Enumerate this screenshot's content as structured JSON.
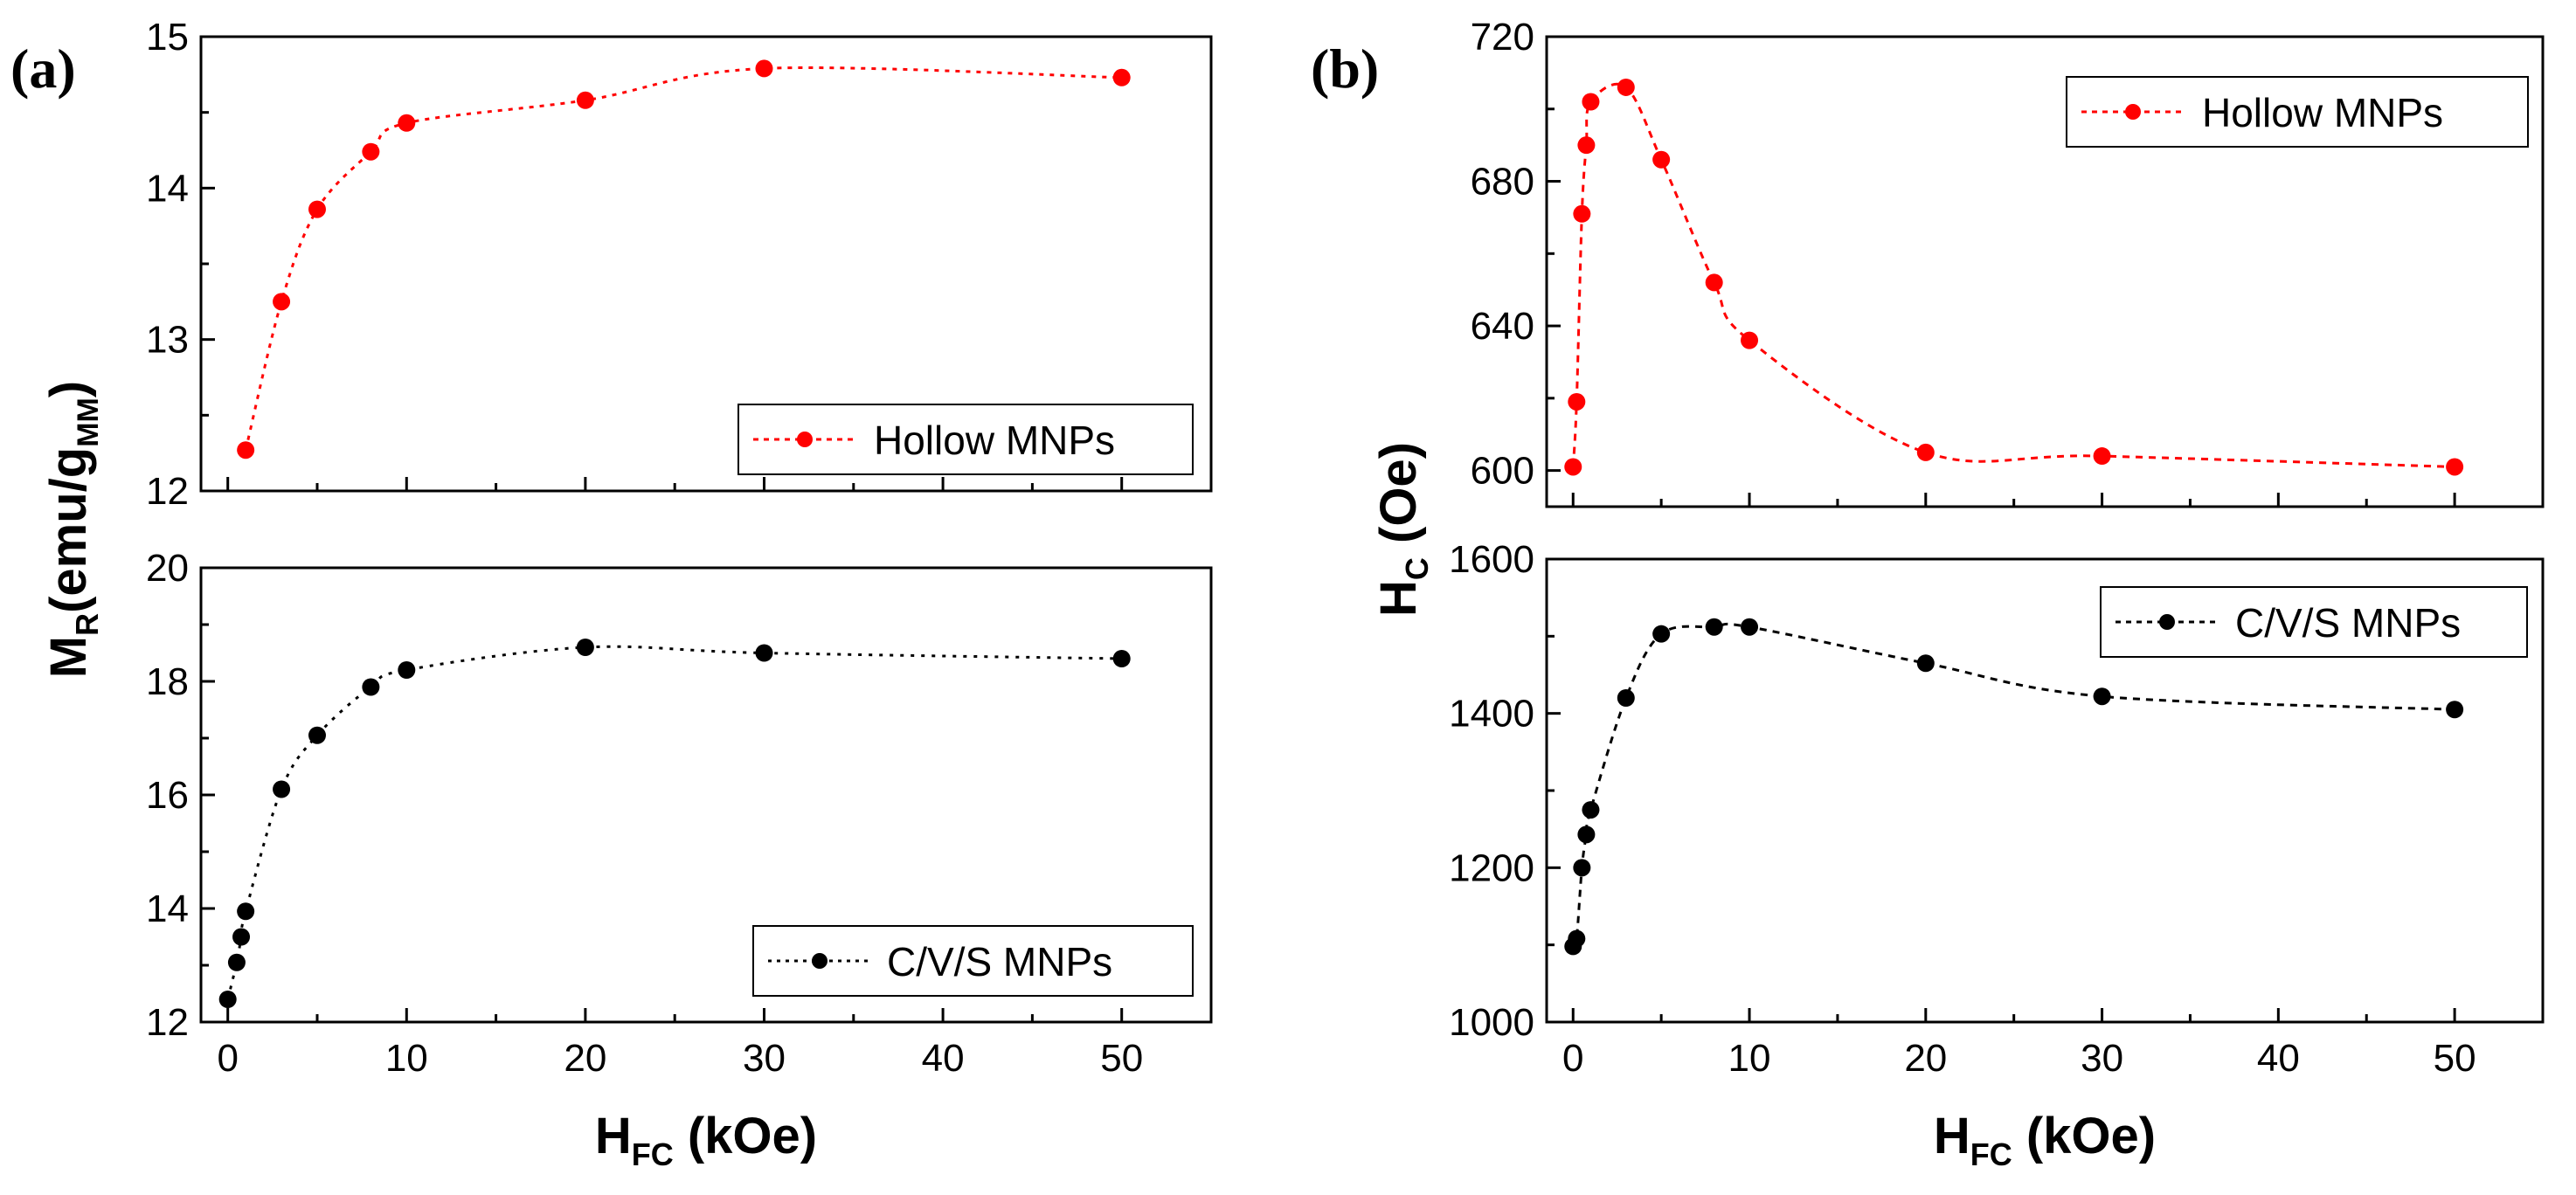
{
  "chart_data": [
    {
      "panel": "(a)",
      "type": "scatter",
      "subplot": "top",
      "xlim": [
        -1.5,
        55
      ],
      "ylim": [
        12,
        15
      ],
      "yticks": [
        "12",
        "13",
        "14",
        "15"
      ],
      "ylabel": "M",
      "ylabel_sub": "R",
      "ylabel_rest": "(emu/g",
      "ylabel_rest_sub": "MM",
      "ylabel_close": ")",
      "series": [
        {
          "name": "Hollow MNPs",
          "color": "#ff0000",
          "x": [
            1,
            3,
            5,
            8,
            10,
            20,
            30,
            50
          ],
          "y": [
            12.27,
            13.25,
            13.86,
            14.24,
            14.43,
            14.58,
            14.79,
            14.73
          ]
        }
      ],
      "legend": "Hollow MNPs",
      "legend_position": "bottom-right"
    },
    {
      "panel": "",
      "type": "scatter",
      "subplot": "bottom",
      "xlim": [
        -1.5,
        55
      ],
      "ylim": [
        12,
        20
      ],
      "yticks": [
        "12",
        "14",
        "16",
        "18",
        "20"
      ],
      "xticks": [
        "0",
        "10",
        "20",
        "30",
        "40",
        "50"
      ],
      "xlabel": "H",
      "xlabel_sub": "FC",
      "xlabel_rest": " (kOe)",
      "series": [
        {
          "name": "C/V/S MNPs",
          "color": "#000000",
          "x": [
            0,
            0.5,
            0.75,
            1,
            3,
            5,
            8,
            10,
            20,
            30,
            50
          ],
          "y": [
            12.4,
            13.05,
            13.5,
            13.95,
            16.1,
            17.05,
            17.9,
            18.2,
            18.6,
            18.5,
            18.4
          ]
        }
      ],
      "legend": "C/V/S MNPs",
      "legend_position": "bottom-right"
    },
    {
      "panel": "(b)",
      "type": "scatter",
      "subplot": "top",
      "xlim": [
        -1.5,
        55
      ],
      "ylim": [
        590,
        720
      ],
      "yticks": [
        "600",
        "640",
        "680",
        "720"
      ],
      "ylabel": "H",
      "ylabel_sub": "C",
      "ylabel_rest": " (Oe)",
      "series": [
        {
          "name": "Hollow MNPs",
          "color": "#ff0000",
          "x": [
            0,
            0.2,
            0.5,
            0.75,
            1,
            3,
            5,
            8,
            10,
            20,
            30,
            50
          ],
          "y": [
            601,
            619,
            671,
            690,
            702,
            706,
            686,
            652,
            636,
            605,
            604,
            601
          ]
        }
      ],
      "legend": "Hollow MNPs",
      "legend_position": "top-right"
    },
    {
      "panel": "",
      "type": "scatter",
      "subplot": "bottom",
      "xlim": [
        -1.5,
        55
      ],
      "ylim": [
        1000,
        1600
      ],
      "yticks": [
        "1000",
        "1200",
        "1400",
        "1600"
      ],
      "xticks": [
        "0",
        "10",
        "20",
        "30",
        "40",
        "50"
      ],
      "xlabel": "H",
      "xlabel_sub": "FC",
      "xlabel_rest": " (kOe)",
      "series": [
        {
          "name": "C/V/S MNPs",
          "color": "#000000",
          "x": [
            0,
            0.2,
            0.5,
            0.75,
            1,
            3,
            5,
            8,
            10,
            20,
            30,
            50
          ],
          "y": [
            1098,
            1108,
            1200,
            1243,
            1275,
            1420,
            1503,
            1512,
            1512,
            1465,
            1422,
            1405
          ]
        }
      ],
      "legend": "C/V/S MNPs",
      "legend_position": "top-right"
    }
  ]
}
